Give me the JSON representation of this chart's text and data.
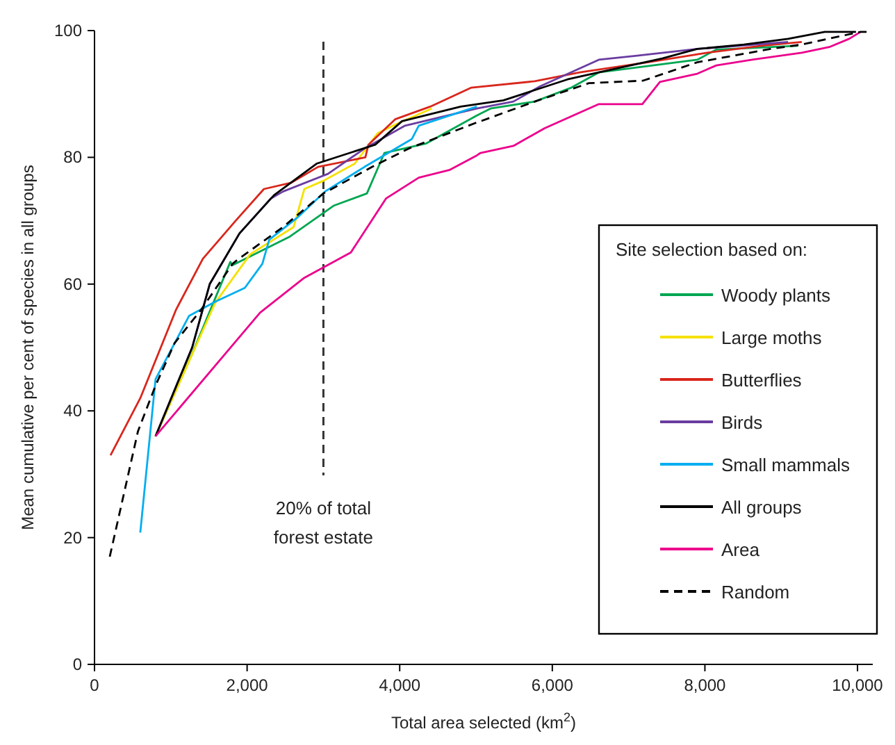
{
  "chart_data": {
    "type": "line",
    "xlabel": "Total area selected (km$^{2}$)",
    "ylabel": "Mean cumulative per cent of species in all groups",
    "legend_title": "Site selection based on:",
    "legend": "bottom right",
    "grid": false,
    "marker": "none",
    "xlim": [
      0,
      10200
    ],
    "ylim": [
      0,
      100
    ],
    "xticks": [
      0,
      {
        "value": 2000,
        "label": "2,000"
      },
      {
        "value": 4000,
        "label": "4,000"
      },
      {
        "value": 6000,
        "label": "6,000"
      },
      {
        "value": 8000,
        "label": "8,000"
      },
      {
        "value": 10000,
        "label": "10,000"
      }
    ],
    "yticks": [
      0,
      20,
      40,
      60,
      80,
      100
    ],
    "ref_lines": [
      {
        "axis": "x",
        "value": 3000,
        "label": "20% of total\nforest estate",
        "line_style": "dashed",
        "color": "#333333"
      }
    ],
    "series": [
      {
        "name": "Woody plants",
        "color": "#00a651",
        "line_style": "solid",
        "x": [
          800,
          1280,
          1780,
          1810,
          2560,
          3140,
          3570,
          3800,
          4350,
          5010,
          5190,
          5770,
          6250,
          6610,
          7900,
          8150,
          9220
        ],
        "values": [
          36,
          49,
          63.5,
          63,
          67.5,
          72.4,
          74.3,
          80.7,
          82.2,
          86.6,
          87.7,
          88.8,
          91,
          93.4,
          95.4,
          97,
          97.6
        ]
      },
      {
        "name": "Large moths",
        "color": "#f5e100",
        "line_style": "solid",
        "x": [
          800,
          1580,
          2040,
          2610,
          2750,
          3000,
          3410,
          3710,
          4000,
          4420
        ],
        "values": [
          36,
          57,
          64.7,
          69,
          75,
          76.3,
          79,
          83.8,
          85.5,
          87.7
        ]
      },
      {
        "name": "Butterflies",
        "color": "#d9261c",
        "line_style": "solid",
        "x": [
          210,
          600,
          1070,
          1420,
          1850,
          2220,
          2580,
          2930,
          3550,
          3590,
          3940,
          4400,
          4940,
          5770,
          6360,
          7250,
          8030,
          8740,
          9270
        ],
        "values": [
          33,
          42,
          56,
          64,
          70,
          75,
          76,
          78.5,
          80,
          82,
          86,
          88,
          91,
          92,
          93.4,
          95,
          96.5,
          97.6,
          98.2
        ]
      },
      {
        "name": "Birds",
        "color": "#6a3da0",
        "line_style": "solid",
        "x": [
          800,
          1280,
          1510,
          1900,
          2310,
          2470,
          3060,
          3540,
          4070,
          5010,
          5490,
          5840,
          6610,
          7090,
          7900,
          9090
        ],
        "values": [
          36,
          50,
          60,
          68,
          73.5,
          74.6,
          77.4,
          81.4,
          85,
          87.7,
          88.8,
          91.2,
          95.4,
          96,
          97.1,
          98.2
        ]
      },
      {
        "name": "Small mammals",
        "color": "#00aeef",
        "line_style": "solid",
        "x": [
          600,
          800,
          1240,
          1580,
          1970,
          2200,
          2290,
          2650,
          3020,
          3540,
          4160,
          4250,
          5010
        ],
        "values": [
          20.8,
          45,
          55,
          57.2,
          59.4,
          63.2,
          67,
          70.4,
          74.6,
          78.5,
          82.9,
          85,
          88
        ]
      },
      {
        "name": "All groups",
        "color": "#000000",
        "line_style": "solid",
        "x": [
          800,
          1280,
          1510,
          1900,
          2350,
          2910,
          3680,
          4030,
          4800,
          5360,
          6200,
          6610,
          7440,
          7900,
          8510,
          9090,
          9570,
          9980
        ],
        "values": [
          36,
          50,
          60,
          68,
          74,
          79,
          82,
          85.7,
          88,
          89,
          92.3,
          93.4,
          95.6,
          97.1,
          97.8,
          98.7,
          99.8,
          99.8
        ]
      },
      {
        "name": "Area",
        "color": "#ec008c",
        "line_style": "solid",
        "x": [
          800,
          2170,
          2750,
          3360,
          3820,
          4250,
          4650,
          5010,
          5060,
          5490,
          5900,
          6610,
          7180,
          7410,
          7900,
          8150,
          8620,
          9270,
          9630,
          9890,
          10040
        ],
        "values": [
          36,
          55.5,
          61,
          65,
          73.5,
          76.8,
          78,
          80.3,
          80.7,
          81.8,
          84.6,
          88.4,
          88.4,
          91.9,
          93.2,
          94.5,
          95.4,
          96.5,
          97.4,
          98.7,
          99.8
        ]
      },
      {
        "name": "Random",
        "color": "#000000",
        "line_style": "dashed",
        "x": [
          200,
          570,
          800,
          1050,
          1400,
          1810,
          1870,
          2470,
          3000,
          3640,
          4120,
          5010,
          5060,
          5770,
          6480,
          7190,
          7900,
          8860,
          9270,
          10040,
          10160
        ],
        "values": [
          17,
          36.8,
          44,
          50.7,
          56,
          63.2,
          63.8,
          69,
          74.3,
          78.5,
          81.4,
          85.5,
          85.7,
          88.8,
          91.7,
          92.1,
          95,
          97.1,
          97.8,
          99.8,
          99.8
        ]
      }
    ]
  }
}
